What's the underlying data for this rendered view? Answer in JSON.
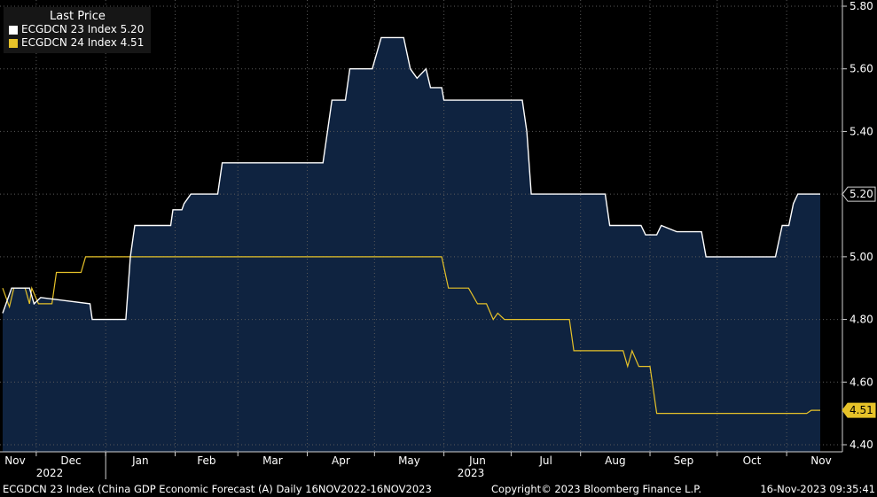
{
  "legend": {
    "title": "Last Price",
    "entries": [
      {
        "text": "ECGDCN 23 Index  5.20",
        "color": "#ffffff"
      },
      {
        "text": "ECGDCN 24 Index  4.51",
        "color": "#e6c229"
      }
    ]
  },
  "footer": {
    "left": "ECGDCN 23 Index (China GDP Economic Forecast (A)  Daily 16NOV2022-16NOV2023",
    "center": "Copyright© 2023 Bloomberg Finance L.P.",
    "right": "16-Nov-2023 09:35:41"
  },
  "colors": {
    "background": "#000000",
    "area_fill": "#0f2340",
    "series1": "#ffffff",
    "series2": "#e6c229",
    "grid": "#5a5a5a"
  },
  "chart_data": {
    "type": "area",
    "x_range": [
      "2022-11-16",
      "2023-11-16"
    ],
    "ylim": [
      4.4,
      5.8
    ],
    "y_ticks": [
      "4.40",
      "4.60",
      "4.80",
      "5.00",
      "5.20",
      "5.40",
      "5.60",
      "5.80"
    ],
    "x_ticks": [
      {
        "date": "2022-11-01",
        "label": "Nov"
      },
      {
        "date": "2022-12-01",
        "label": "Dec"
      },
      {
        "date": "2023-01-01",
        "label": "Jan"
      },
      {
        "date": "2023-02-01",
        "label": "Feb"
      },
      {
        "date": "2023-03-01",
        "label": "Mar"
      },
      {
        "date": "2023-04-01",
        "label": "Apr"
      },
      {
        "date": "2023-05-01",
        "label": "May"
      },
      {
        "date": "2023-06-01",
        "label": "Jun"
      },
      {
        "date": "2023-07-01",
        "label": "Jul"
      },
      {
        "date": "2023-08-01",
        "label": "Aug"
      },
      {
        "date": "2023-09-01",
        "label": "Sep"
      },
      {
        "date": "2023-10-01",
        "label": "Oct"
      },
      {
        "date": "2023-11-01",
        "label": "Nov"
      }
    ],
    "year_labels": [
      {
        "date": "2022-12-01",
        "label": "2022"
      },
      {
        "date": "2023-06-01",
        "label": "2023"
      }
    ],
    "grid": true,
    "series": [
      {
        "name": "ECGDCN 23 Index",
        "last": "5.20",
        "points": [
          [
            "2022-11-16",
            4.82
          ],
          [
            "2022-11-20",
            4.9
          ],
          [
            "2022-11-28",
            4.9
          ],
          [
            "2022-11-30",
            4.85
          ],
          [
            "2022-12-03",
            4.87
          ],
          [
            "2022-12-25",
            4.85
          ],
          [
            "2022-12-26",
            4.8
          ],
          [
            "2023-01-10",
            4.8
          ],
          [
            "2023-01-12",
            5.0
          ],
          [
            "2023-01-14",
            5.1
          ],
          [
            "2023-01-30",
            5.1
          ],
          [
            "2023-01-31",
            5.15
          ],
          [
            "2023-02-04",
            5.15
          ],
          [
            "2023-02-05",
            5.17
          ],
          [
            "2023-02-08",
            5.2
          ],
          [
            "2023-02-20",
            5.2
          ],
          [
            "2023-02-22",
            5.3
          ],
          [
            "2023-04-08",
            5.3
          ],
          [
            "2023-04-10",
            5.4
          ],
          [
            "2023-04-12",
            5.5
          ],
          [
            "2023-04-18",
            5.5
          ],
          [
            "2023-04-20",
            5.6
          ],
          [
            "2023-04-30",
            5.6
          ],
          [
            "2023-05-04",
            5.7
          ],
          [
            "2023-05-14",
            5.7
          ],
          [
            "2023-05-17",
            5.6
          ],
          [
            "2023-05-20",
            5.57
          ],
          [
            "2023-05-24",
            5.6
          ],
          [
            "2023-05-26",
            5.54
          ],
          [
            "2023-05-31",
            5.54
          ],
          [
            "2023-06-01",
            5.5
          ],
          [
            "2023-07-06",
            5.5
          ],
          [
            "2023-07-08",
            5.4
          ],
          [
            "2023-07-10",
            5.2
          ],
          [
            "2023-08-12",
            5.2
          ],
          [
            "2023-08-14",
            5.1
          ],
          [
            "2023-08-28",
            5.1
          ],
          [
            "2023-08-30",
            5.07
          ],
          [
            "2023-09-04",
            5.07
          ],
          [
            "2023-09-06",
            5.1
          ],
          [
            "2023-09-13",
            5.08
          ],
          [
            "2023-09-24",
            5.08
          ],
          [
            "2023-09-26",
            5.0
          ],
          [
            "2023-10-27",
            5.0
          ],
          [
            "2023-10-30",
            5.1
          ],
          [
            "2023-11-02",
            5.1
          ],
          [
            "2023-11-04",
            5.17
          ],
          [
            "2023-11-06",
            5.2
          ],
          [
            "2023-11-16",
            5.2
          ]
        ]
      },
      {
        "name": "ECGDCN 24 Index",
        "last": "4.51",
        "points": [
          [
            "2022-11-16",
            4.9
          ],
          [
            "2022-11-19",
            4.84
          ],
          [
            "2022-11-21",
            4.9
          ],
          [
            "2022-11-26",
            4.9
          ],
          [
            "2022-11-28",
            4.85
          ],
          [
            "2022-11-29",
            4.9
          ],
          [
            "2022-12-02",
            4.85
          ],
          [
            "2022-12-08",
            4.85
          ],
          [
            "2022-12-10",
            4.95
          ],
          [
            "2022-12-21",
            4.95
          ],
          [
            "2022-12-23",
            5.0
          ],
          [
            "2023-05-31",
            5.0
          ],
          [
            "2023-06-03",
            4.9
          ],
          [
            "2023-06-12",
            4.9
          ],
          [
            "2023-06-16",
            4.85
          ],
          [
            "2023-06-20",
            4.85
          ],
          [
            "2023-06-23",
            4.8
          ],
          [
            "2023-06-25",
            4.82
          ],
          [
            "2023-06-28",
            4.8
          ],
          [
            "2023-07-27",
            4.8
          ],
          [
            "2023-07-29",
            4.7
          ],
          [
            "2023-08-20",
            4.7
          ],
          [
            "2023-08-22",
            4.65
          ],
          [
            "2023-08-24",
            4.7
          ],
          [
            "2023-08-27",
            4.65
          ],
          [
            "2023-09-01",
            4.65
          ],
          [
            "2023-09-04",
            4.5
          ],
          [
            "2023-11-10",
            4.5
          ],
          [
            "2023-11-12",
            4.51
          ],
          [
            "2023-11-16",
            4.51
          ]
        ]
      }
    ]
  }
}
